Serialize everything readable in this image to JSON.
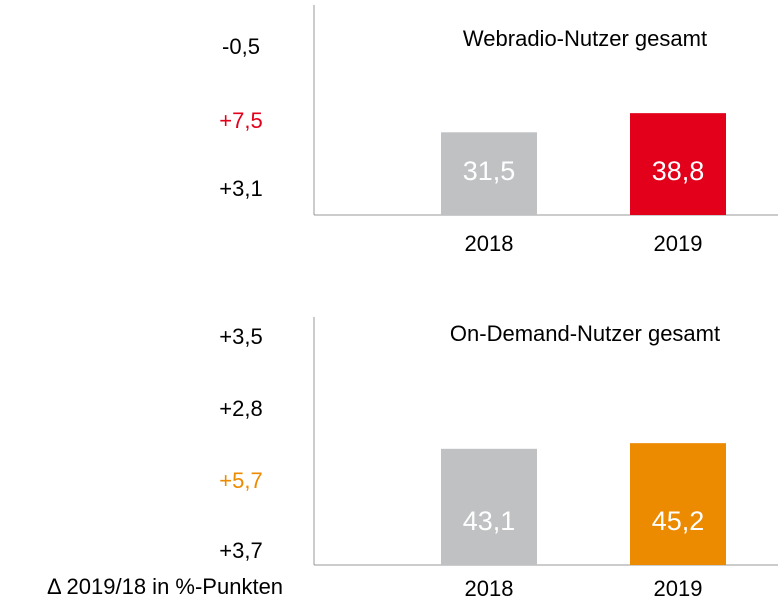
{
  "chart_data": [
    {
      "type": "bar",
      "title": "Webradio-Nutzer gesamt",
      "categories": [
        "2018",
        "2019"
      ],
      "values": [
        31.5,
        38.8
      ],
      "value_labels": [
        "31,5",
        "38,8"
      ],
      "colors": [
        "#bfc1c2",
        "#e2001a"
      ],
      "ylim": [
        0,
        80
      ],
      "annotations": [
        {
          "value": -0.5,
          "label": "-0,5",
          "color": "#000000"
        },
        {
          "value": 7.5,
          "label": "+7,5",
          "color": "#e2001a"
        },
        {
          "value": 3.1,
          "label": "+3,1",
          "color": "#000000"
        }
      ]
    },
    {
      "type": "bar",
      "title": "On-Demand-Nutzer gesamt",
      "categories": [
        "2018",
        "2019"
      ],
      "values": [
        43.1,
        45.2
      ],
      "value_labels": [
        "43,1",
        "45,2"
      ],
      "colors": [
        "#bfc1c2",
        "#ec8a00"
      ],
      "ylim": [
        0,
        92
      ],
      "annotations": [
        {
          "value": 3.5,
          "label": "+3,5",
          "color": "#000000"
        },
        {
          "value": 2.8,
          "label": "+2,8",
          "color": "#000000"
        },
        {
          "value": 5.7,
          "label": "+5,7",
          "color": "#ec8a00"
        },
        {
          "value": 3.7,
          "label": "+3,7",
          "color": "#000000"
        }
      ]
    }
  ],
  "footnote": "Δ 2019/18 in %-Punkten"
}
